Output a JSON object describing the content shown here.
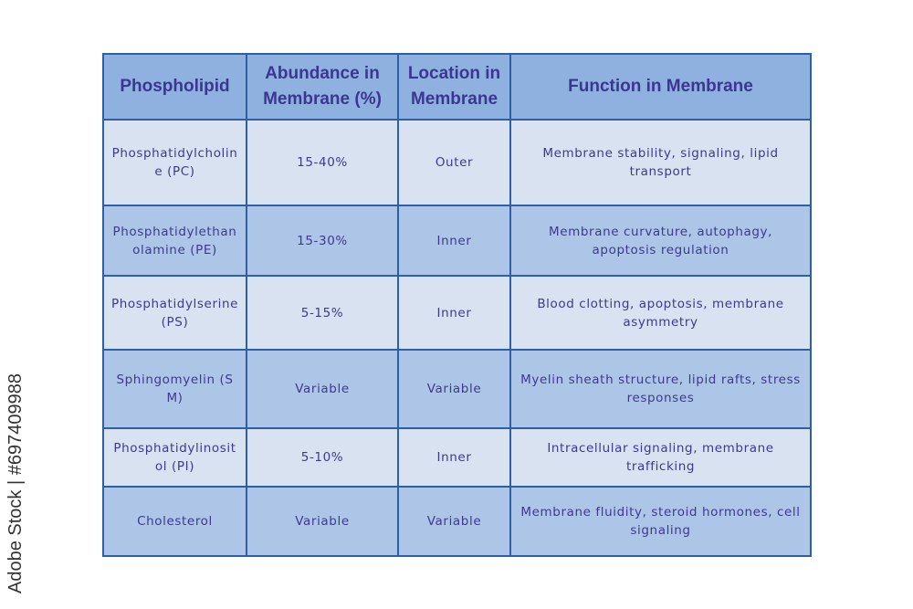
{
  "table": {
    "headers": [
      "Phospholipid",
      "Abundance in Membrane (%)",
      "Location in Membrane",
      "Function in Membrane"
    ],
    "rows": [
      [
        "Phosphatidylcholine (PC)",
        "15-40%",
        "Outer",
        "Membrane stability, signaling, lipid transport"
      ],
      [
        "Phosphatidylethanolamine (PE)",
        "15-30%",
        "Inner",
        "Membrane curvature, autophagy, apoptosis regulation"
      ],
      [
        "Phosphatidylserine (PS)",
        "5-15%",
        "Inner",
        "Blood clotting, apoptosis, membrane asymmetry"
      ],
      [
        "Sphingomyelin (SM)",
        "Variable",
        "Variable",
        "Myelin sheath structure, lipid rafts, stress responses"
      ],
      [
        "Phosphatidylinositol (PI)",
        "5-10%",
        "Inner",
        "Intracellular signaling, membrane trafficking"
      ],
      [
        "Cholesterol",
        "Variable",
        "Variable",
        "Membrane fluidity, steroid hormones, cell signaling"
      ]
    ]
  },
  "watermark": "Adobe Stock | #697409988",
  "colors": {
    "header_bg": "#8eb1e0",
    "row_light": "#d8e2f1",
    "row_dark": "#adc5e7",
    "border": "#2c5fa6",
    "text": "#3d3a8e"
  }
}
